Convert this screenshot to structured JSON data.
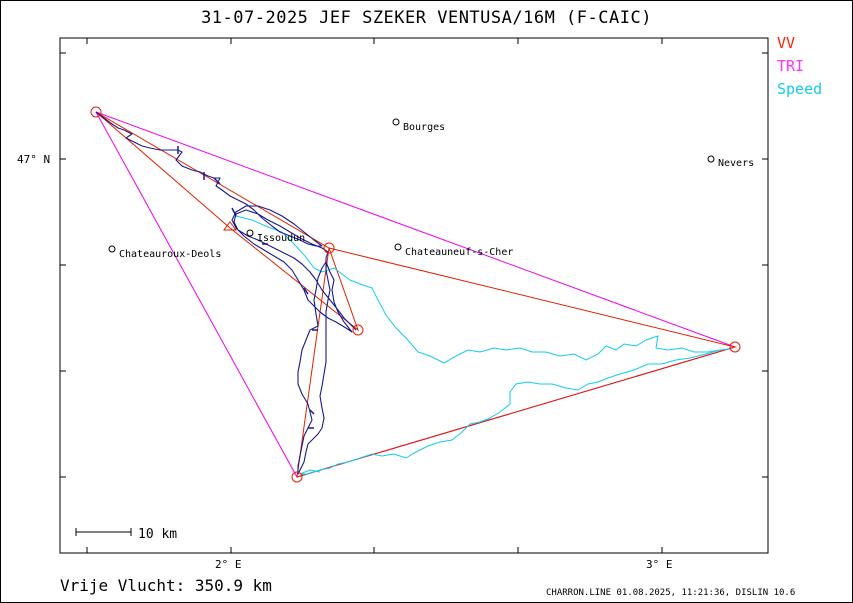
{
  "title": "31-07-2025   JEF SZEKER   VENTUSA/16M (F-CAIC)",
  "legend": [
    {
      "label": "VV",
      "color": "#ff2200"
    },
    {
      "label": "TRI",
      "color": "#ff33ff"
    },
    {
      "label": "Speed",
      "color": "#11ccee"
    }
  ],
  "colors": {
    "track": "#1a1a8c",
    "triangle": "#ee00ee",
    "route": "#dd2200",
    "speed": "#11ccee",
    "axis": "#000000"
  },
  "axes": {
    "lat_label": "47° N",
    "lon_labels": [
      "2° E",
      "3° E"
    ]
  },
  "cities": [
    {
      "name": "Bourges"
    },
    {
      "name": "Nevers"
    },
    {
      "name": "Issoudun"
    },
    {
      "name": "Chateauroux-Deols"
    },
    {
      "name": "Chateauneuf-s-Cher"
    }
  ],
  "scale_bar": {
    "label": "10 km"
  },
  "footer": {
    "distance": "Vrije Vlucht:  350.9 km",
    "credit": "CHARRON.LINE 01.08.2025, 11:21:36, DISLIN 10.6"
  }
}
